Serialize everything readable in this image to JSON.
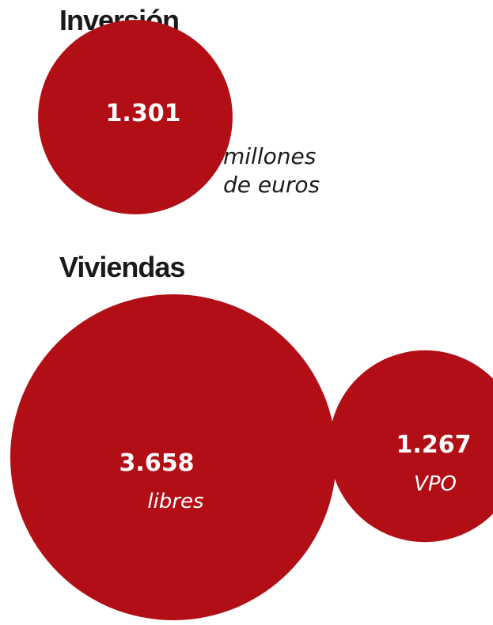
{
  "colors": {
    "bubble": "#b20e16",
    "title_text": "#1a1a1a",
    "bubble_text": "#ffffff"
  },
  "inversion": {
    "title": "Inversión",
    "unit_line1": "millones",
    "unit_line2": "de euros"
  },
  "viviendas": {
    "title": "Viviendas"
  },
  "chart_data": [
    {
      "type": "bubble",
      "title": "Inversión",
      "items": [
        {
          "value": 1301,
          "value_text": "1.301",
          "label": ""
        }
      ],
      "unit": "millones de euros"
    },
    {
      "type": "bubble",
      "title": "Viviendas",
      "items": [
        {
          "value": 3658,
          "value_text": "3.658",
          "label": "libres"
        },
        {
          "value": 1267,
          "value_text": "1.267",
          "label": "VPO"
        }
      ]
    }
  ]
}
